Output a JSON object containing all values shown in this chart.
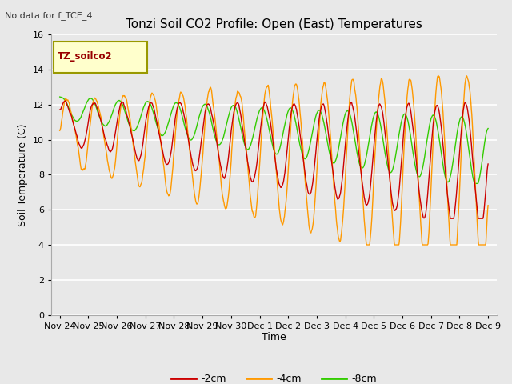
{
  "title": "Tonzi Soil CO2 Profile: Open (East) Temperatures",
  "no_data_text": "No data for f_TCE_4",
  "ylabel": "Soil Temperature (C)",
  "xlabel": "Time",
  "legend_label": "TZ_soilco2",
  "series_labels": [
    "-2cm",
    "-4cm",
    "-8cm"
  ],
  "series_colors": [
    "#cc0000",
    "#ff9900",
    "#33cc00"
  ],
  "ylim": [
    0,
    16
  ],
  "yticks": [
    0,
    2,
    4,
    6,
    8,
    10,
    12,
    14,
    16
  ],
  "xtick_labels": [
    "Nov 24",
    "Nov 25",
    "Nov 26",
    "Nov 27",
    "Nov 28",
    "Nov 29",
    "Nov 30",
    "Dec 1",
    "Dec 2",
    "Dec 3",
    "Dec 4",
    "Dec 5",
    "Dec 6",
    "Dec 7",
    "Dec 8",
    "Dec 9"
  ],
  "fig_bg_color": "#e8e8e8",
  "plot_bg_color": "#e8e8e8",
  "grid_color": "#ffffff",
  "title_fontsize": 11,
  "axis_fontsize": 9,
  "tick_fontsize": 8,
  "legend_box_color": "#ffffcc",
  "legend_box_edge": "#999900"
}
